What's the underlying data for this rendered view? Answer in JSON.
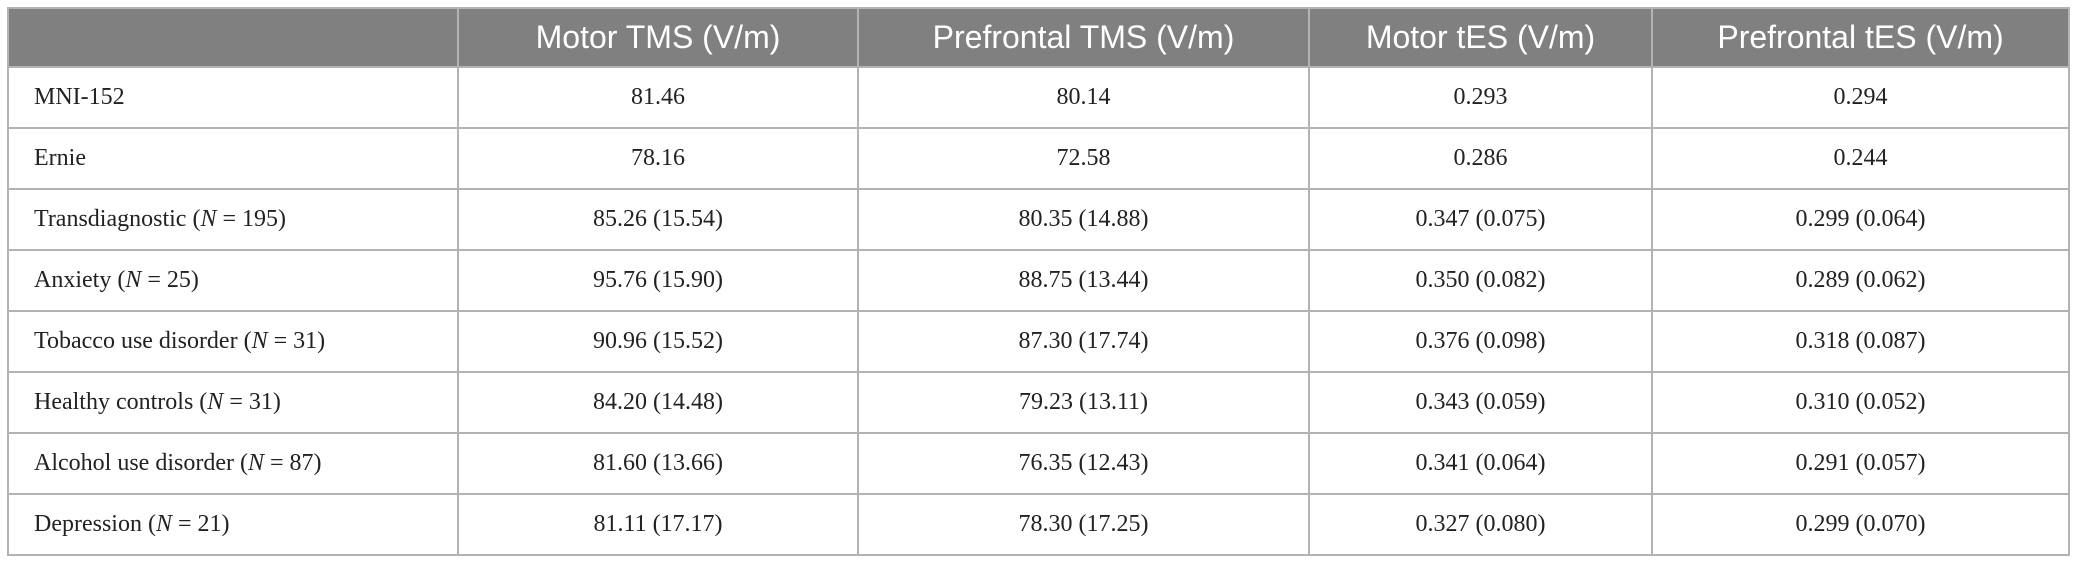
{
  "table": {
    "header": [
      "",
      "Motor TMS (V/m)",
      "Prefrontal TMS (V/m)",
      "Motor tES (V/m)",
      "Prefrontal tES (V/m)"
    ],
    "rows": [
      [
        "MNI-152",
        "81.46",
        "80.14",
        "0.293",
        "0.294"
      ],
      [
        "Ernie",
        "78.16",
        "72.58",
        "0.286",
        "0.244"
      ],
      [
        "Transdiagnostic (N = 195)",
        "85.26 (15.54)",
        "80.35 (14.88)",
        "0.347 (0.075)",
        "0.299 (0.064)"
      ],
      [
        "Anxiety (N = 25)",
        "95.76 (15.90)",
        "88.75 (13.44)",
        "0.350 (0.082)",
        "0.289 (0.062)"
      ],
      [
        "Tobacco use disorder (N = 31)",
        "90.96 (15.52)",
        "87.30 (17.74)",
        "0.376 (0.098)",
        "0.318 (0.087)"
      ],
      [
        "Healthy controls (N = 31)",
        "84.20 (14.48)",
        "79.23 (13.11)",
        "0.343 (0.059)",
        "0.310 (0.052)"
      ],
      [
        "Alcohol use disorder (N = 87)",
        "81.60 (13.66)",
        "76.35 (12.43)",
        "0.341 (0.064)",
        "0.291 (0.057)"
      ],
      [
        "Depression (N = 21)",
        "81.11 (17.17)",
        "78.30 (17.25)",
        "0.327 (0.080)",
        "0.299 (0.070)"
      ]
    ]
  }
}
